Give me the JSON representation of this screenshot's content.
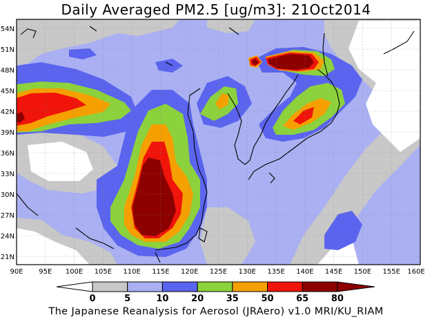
{
  "title": "Daily Averaged PM2.5 [ug/m3]: 21Oct2014",
  "credit": "The Japanese Reanalysis for Aerosol (JRAero) v1.0 MRI/KU_RIAM",
  "map": {
    "lon_range": [
      90,
      160
    ],
    "lat_range": [
      20,
      55
    ],
    "lon_labels": [
      "90E",
      "95E",
      "100E",
      "105E",
      "110E",
      "115E",
      "120E",
      "125E",
      "130E",
      "135E",
      "140E",
      "145E",
      "150E",
      "155E",
      "160E"
    ],
    "lat_labels": [
      "21N",
      "24N",
      "27N",
      "30N",
      "33N",
      "36N",
      "39N",
      "42N",
      "45N",
      "48N",
      "51N",
      "54N"
    ]
  },
  "colorbar": {
    "labels": [
      "0",
      "5",
      "10",
      "20",
      "35",
      "50",
      "65",
      "80"
    ],
    "colors": [
      "#ffffff",
      "#c8c8c8",
      "#aab0f2",
      "#5a64ee",
      "#8cd23c",
      "#f5a000",
      "#f0140a",
      "#8c0000"
    ]
  }
}
